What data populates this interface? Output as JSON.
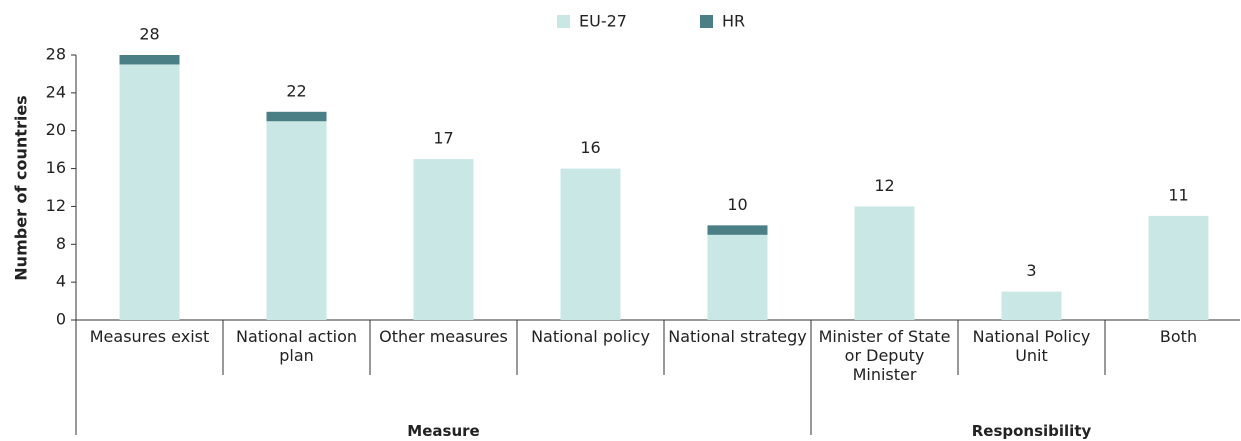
{
  "chart_data": {
    "type": "bar",
    "stacked": true,
    "y_label": "Number of countries",
    "categories": [
      "Measures exist",
      "National action plan",
      "Other measures",
      "National policy",
      "National strategy",
      "Minister of State or Deputy Minister",
      "National Policy Unit",
      "Both"
    ],
    "groups": [
      {
        "label": "Measure",
        "span": 5
      },
      {
        "label": "Responsibility",
        "span": 3
      }
    ],
    "series": [
      {
        "name": "EU-27",
        "color": "#c9e8e5",
        "values": [
          27,
          21,
          17,
          16,
          9,
          12,
          3,
          11
        ]
      },
      {
        "name": "HR",
        "color": "#4a7f86",
        "values": [
          1,
          1,
          0,
          0,
          1,
          0,
          0,
          0
        ]
      }
    ],
    "totals": [
      28,
      22,
      17,
      16,
      10,
      12,
      3,
      11
    ],
    "ylim": [
      0,
      28
    ],
    "yticks": [
      0,
      4,
      8,
      12,
      16,
      20,
      24,
      28
    ]
  }
}
